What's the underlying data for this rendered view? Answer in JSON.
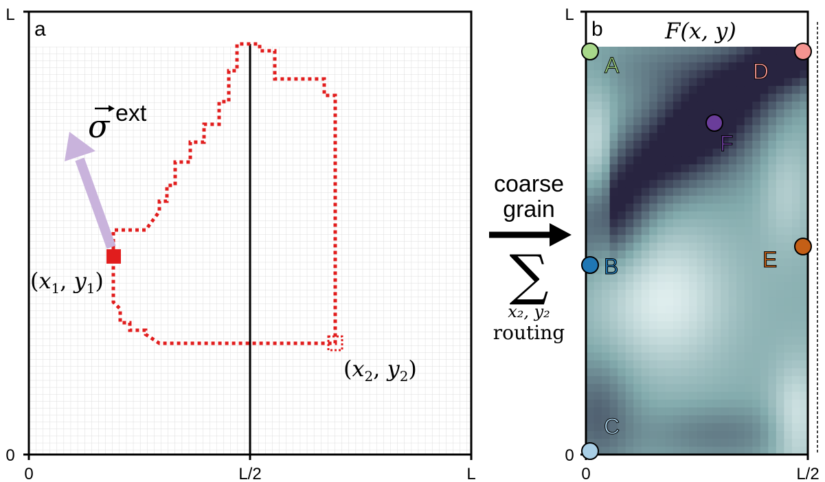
{
  "panel_a": {
    "label": "a",
    "axis_x": {
      "min": "0",
      "mid": "L/2",
      "max": "L"
    },
    "axis_y": {
      "min": "0",
      "max": "L"
    },
    "stress_vector_label": "σ",
    "stress_vector_superscript": "ext",
    "stress_vector_color": "#c9b3dc",
    "path_color": "#e11d1d",
    "start_point": {
      "label_x": "x",
      "label_sub_1": "1",
      "label_y": "y",
      "label_sub_2": "1"
    },
    "end_point": {
      "label_x": "x",
      "label_sub_1": "2",
      "label_y": "y",
      "label_sub_2": "2"
    }
  },
  "middle": {
    "line1": "coarse",
    "line2": "grain",
    "sum_symbol": "∑",
    "sum_sub": "x₂, y₂",
    "routing": "routing"
  },
  "panel_b": {
    "label": "b",
    "title": "F(x, y)",
    "axis_x": {
      "min": "0",
      "max": "L/2"
    },
    "axis_y": {
      "min": "0",
      "max": "L"
    },
    "points": [
      {
        "id": "A",
        "color": "#a8d88a",
        "text_color": "#9ccf7e"
      },
      {
        "id": "B",
        "color": "#1f77b4",
        "text_color": "#1f77b4"
      },
      {
        "id": "C",
        "color": "#a9cfe6",
        "text_color": "#a9cfe6"
      },
      {
        "id": "D",
        "color": "#f59490",
        "text_color": "#f59490"
      },
      {
        "id": "E",
        "color": "#c45f16",
        "text_color": "#c45f16"
      },
      {
        "id": "F",
        "color": "#6a3d9a",
        "text_color": "#6a3d9a"
      }
    ]
  }
}
